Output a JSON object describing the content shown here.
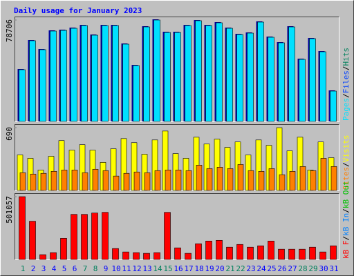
{
  "chart_data": [
    {
      "type": "bar",
      "title": "Daily usage for January 2023",
      "ylim": [
        0,
        78706
      ],
      "yticks": [
        78706
      ],
      "series": [
        {
          "name": "Pages",
          "color": "#00e0ff",
          "shadow_color": "#0000a0",
          "values": [
            40156,
            62643,
            55683,
            70139,
            70674,
            72281,
            74422,
            66927,
            74422,
            74422,
            59966,
            43369,
            73352,
            78706,
            69068,
            69068,
            74422,
            78171,
            74422,
            76564,
            72281,
            67462,
            68533,
            77100,
            65320,
            61037,
            73352,
            48187,
            64250,
            54077,
            23558
          ]
        }
      ],
      "legend": [
        {
          "name": "Files",
          "color": "#0040ff"
        },
        {
          "name": "Hits",
          "color": "#00805c"
        }
      ],
      "legend_separator": "/"
    },
    {
      "type": "bar",
      "ylim": [
        0,
        690
      ],
      "yticks": [
        690
      ],
      "series": [
        {
          "name": "Visits",
          "color": "#ffff00",
          "values": [
            390,
            353,
            225,
            375,
            548,
            443,
            503,
            443,
            308,
            458,
            570,
            525,
            398,
            555,
            653,
            405,
            353,
            585,
            510,
            563,
            473,
            533,
            390,
            555,
            495,
            690,
            435,
            585,
            225,
            533,
            360
          ]
        },
        {
          "name": "Sites",
          "color": "#ff8000",
          "values": [
            195,
            180,
            188,
            210,
            225,
            225,
            195,
            233,
            218,
            158,
            188,
            203,
            195,
            218,
            225,
            225,
            218,
            278,
            240,
            255,
            240,
            285,
            218,
            210,
            240,
            173,
            210,
            263,
            218,
            353,
            263
          ]
        }
      ],
      "legend_separator": "/"
    },
    {
      "type": "bar",
      "ylim": [
        0,
        501057
      ],
      "yticks": [
        501057
      ],
      "categories": [
        "1",
        "2",
        "3",
        "4",
        "5",
        "6",
        "7",
        "8",
        "9",
        "10",
        "11",
        "12",
        "13",
        "14",
        "15",
        "16",
        "17",
        "18",
        "19",
        "20",
        "21",
        "22",
        "23",
        "24",
        "25",
        "26",
        "27",
        "28",
        "29",
        "30",
        "31"
      ],
      "category_colors": [
        "#00805c",
        "#0000ff",
        "#0000ff",
        "#0000ff",
        "#0000ff",
        "#0000ff",
        "#00805c",
        "#00805c",
        "#0000ff",
        "#0000ff",
        "#0000ff",
        "#0000ff",
        "#0000ff",
        "#00805c",
        "#00805c",
        "#0000ff",
        "#0000ff",
        "#0000ff",
        "#0000ff",
        "#0000ff",
        "#00805c",
        "#00805c",
        "#0000ff",
        "#0000ff",
        "#0000ff",
        "#0000ff",
        "#0000ff",
        "#00805c",
        "#00805c",
        "#0000ff",
        "#0000ff"
      ],
      "series": [
        {
          "name": "kB F",
          "color": "#ff0000",
          "values": [
            501057,
            304990,
            38124,
            54463,
            168835,
            359457,
            359457,
            370348,
            375795,
            87140,
            59909,
            54463,
            49016,
            54463,
            375795,
            92587,
            49016,
            125264,
            147050,
            152496,
            98033,
            119818,
            98033,
            108926,
            147050,
            81694,
            81694,
            81694,
            98033,
            59909,
            108926
          ]
        }
      ],
      "legend": [
        {
          "name": "kB In",
          "color": "#0080ff"
        },
        {
          "name": "kB Out",
          "color": "#00c000"
        }
      ],
      "legend_separator": "/"
    }
  ]
}
